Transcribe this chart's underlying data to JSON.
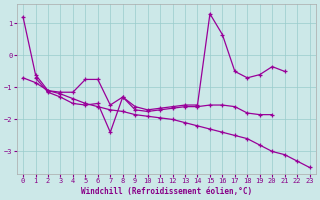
{
  "xlabel": "Windchill (Refroidissement éolien,°C)",
  "background_color": "#cce8e8",
  "line_color": "#990099",
  "grid_color": "#99cccc",
  "line1_y": [
    1.2,
    -0.6,
    -1.1,
    -1.15,
    -1.15,
    -0.75,
    -0.75,
    -1.55,
    -1.3,
    -1.6,
    -1.7,
    -1.65,
    -1.6,
    -1.55,
    -1.55,
    1.3,
    0.65,
    -0.5,
    -0.7,
    -0.6,
    -0.35,
    -0.5,
    null,
    null
  ],
  "line2_y": [
    null,
    -0.7,
    -1.15,
    -1.3,
    -1.5,
    -1.55,
    -1.5,
    -2.4,
    -1.3,
    -1.7,
    -1.75,
    -1.7,
    -1.65,
    -1.6,
    -1.6,
    -1.55,
    -1.55,
    -1.6,
    -1.8,
    -1.85,
    -1.85,
    null,
    null,
    null
  ],
  "line3_y": [
    -0.7,
    -0.85,
    -1.1,
    -1.2,
    -1.35,
    -1.5,
    -1.6,
    -1.7,
    -1.75,
    -1.85,
    -1.9,
    -1.95,
    -2.0,
    -2.1,
    -2.2,
    -2.3,
    -2.4,
    -2.5,
    -2.6,
    -2.8,
    -3.0,
    -3.1,
    -3.3,
    -3.5
  ],
  "xlim": [
    -0.5,
    23.5
  ],
  "ylim": [
    -3.7,
    1.6
  ],
  "yticks": [
    -3,
    -2,
    -1,
    0,
    1
  ],
  "xticks": [
    0,
    1,
    2,
    3,
    4,
    5,
    6,
    7,
    8,
    9,
    10,
    11,
    12,
    13,
    14,
    15,
    16,
    17,
    18,
    19,
    20,
    21,
    22,
    23
  ]
}
